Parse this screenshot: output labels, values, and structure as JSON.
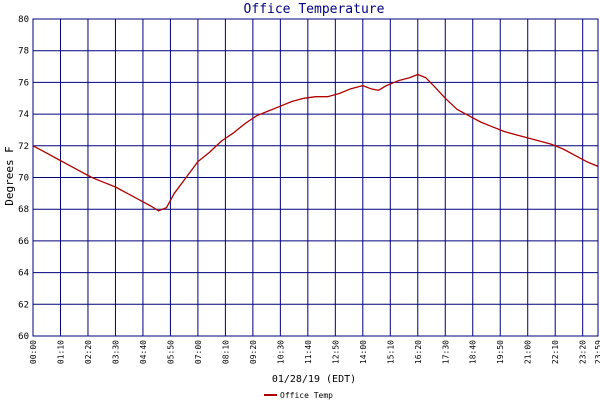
{
  "chart_data": {
    "type": "line",
    "title": "Office Temperature",
    "xlabel": "01/28/19 (EDT)",
    "ylabel": "Degrees F",
    "ylim": [
      60,
      80
    ],
    "yticks": [
      60,
      62,
      64,
      66,
      68,
      70,
      72,
      74,
      76,
      78,
      80
    ],
    "xlim": [
      "00:00",
      "23:59"
    ],
    "xticks": [
      "00:00",
      "01:10",
      "02:20",
      "03:30",
      "04:40",
      "05:50",
      "07:00",
      "08:10",
      "09:20",
      "10:30",
      "11:40",
      "12:50",
      "14:00",
      "15:10",
      "16:20",
      "17:30",
      "18:40",
      "19:50",
      "21:00",
      "22:10",
      "23:20",
      "23:59"
    ],
    "grid": true,
    "legend_position": "bottom-left",
    "colors": {
      "series": "#b00000",
      "grid": "#00007f",
      "title": "#00007f"
    },
    "series": [
      {
        "name": "Office Temp",
        "x": [
          "00:00",
          "00:30",
          "01:00",
          "01:30",
          "02:00",
          "02:30",
          "03:00",
          "03:30",
          "04:00",
          "04:30",
          "05:00",
          "05:20",
          "05:40",
          "06:00",
          "06:30",
          "07:00",
          "07:30",
          "08:00",
          "08:30",
          "09:00",
          "09:30",
          "10:00",
          "10:30",
          "11:00",
          "11:30",
          "12:00",
          "12:30",
          "13:00",
          "13:30",
          "14:00",
          "14:20",
          "14:40",
          "15:00",
          "15:30",
          "16:00",
          "16:20",
          "16:40",
          "17:00",
          "17:30",
          "18:00",
          "18:30",
          "19:00",
          "19:30",
          "20:00",
          "20:30",
          "21:00",
          "21:30",
          "22:00",
          "22:30",
          "23:00",
          "23:30",
          "23:59"
        ],
        "values": [
          72.0,
          71.6,
          71.2,
          70.8,
          70.4,
          70.0,
          69.7,
          69.4,
          69.0,
          68.6,
          68.2,
          67.9,
          68.1,
          69.0,
          70.0,
          71.0,
          71.6,
          72.3,
          72.8,
          73.4,
          73.9,
          74.2,
          74.5,
          74.8,
          75.0,
          75.1,
          75.1,
          75.3,
          75.6,
          75.8,
          75.6,
          75.5,
          75.8,
          76.1,
          76.3,
          76.5,
          76.3,
          75.8,
          75.0,
          74.3,
          73.9,
          73.5,
          73.2,
          72.9,
          72.7,
          72.5,
          72.3,
          72.1,
          71.8,
          71.4,
          71.0,
          70.7
        ]
      }
    ]
  }
}
